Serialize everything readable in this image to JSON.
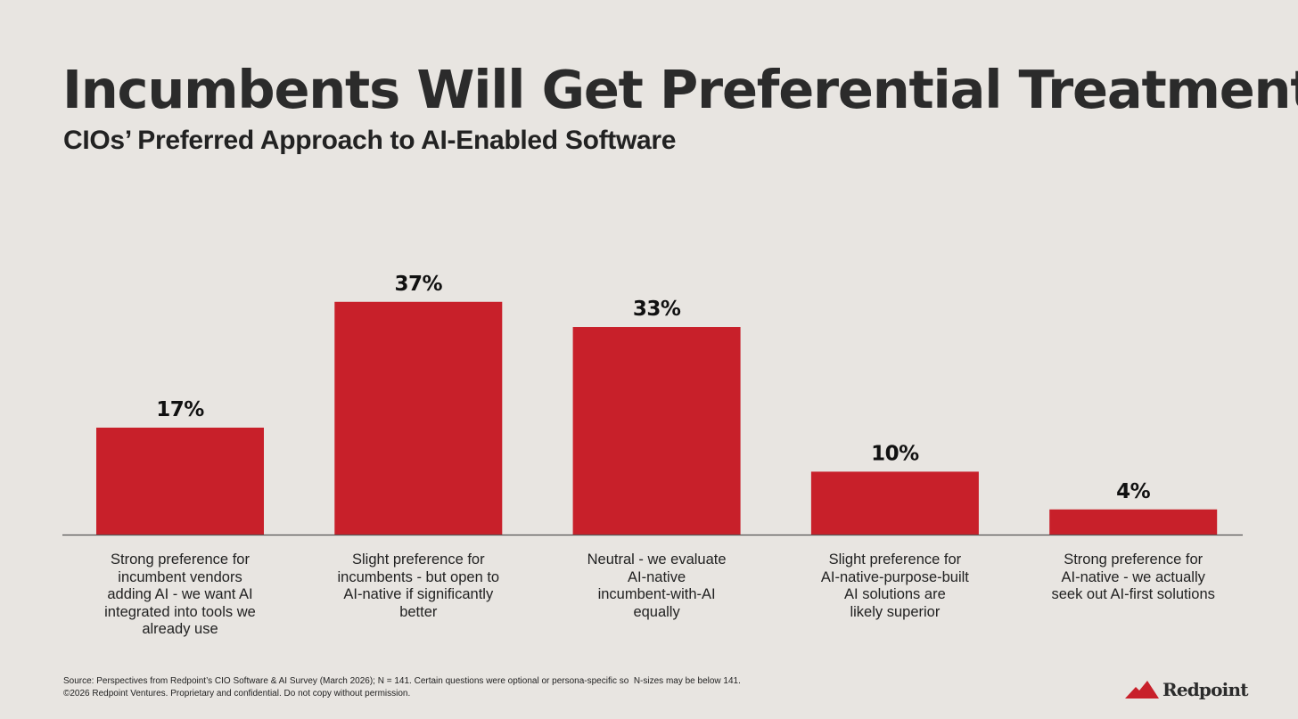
{
  "header": {
    "title": "Incumbents Will Get Preferential Treatment",
    "title_dot": ".",
    "subtitle": "CIOs’ Preferred Approach to AI-Enabled Software"
  },
  "chart_data": {
    "type": "bar",
    "title": "CIOs’ Preferred Approach to AI-Enabled Software",
    "categories": [
      "Strong preference for\nincumbent vendors\nadding AI - we want AI\nintegrated into tools we\nalready use",
      "Slight preference for\nincumbents - but open to\nAI-native if significantly\nbetter",
      "Neutral - we evaluate\nAI-native\nincumbent-with-AI\nequally",
      "Slight preference for\nAI-native-purpose-built\nAI solutions are\nlikely superior",
      "Strong preference for\nAI-native - we actually\nseek out AI-first solutions"
    ],
    "values": [
      17,
      37,
      33,
      10,
      4
    ],
    "data_labels": [
      "17%",
      "37%",
      "33%",
      "10%",
      "4%"
    ],
    "unit": "%",
    "xlabel": "",
    "ylabel": "",
    "ylim": [
      0,
      40
    ],
    "grid": false,
    "bar_color": "#c8202a"
  },
  "footer": {
    "source": "Source: Perspectives from Redpoint’s CIO Software & AI Survey (March 2026); N = 141. Certain questions were optional or persona-specific so  N-sizes may be below 141.",
    "copyright": "©2026 Redpoint Ventures. Proprietary and confidential. Do not copy without permission."
  },
  "brand": {
    "name": "Redpoint",
    "accent": "#c8202a",
    "background": "#e8e5e1",
    "text": "#2b2b2b",
    "logo_icon": "mountain-icon"
  }
}
